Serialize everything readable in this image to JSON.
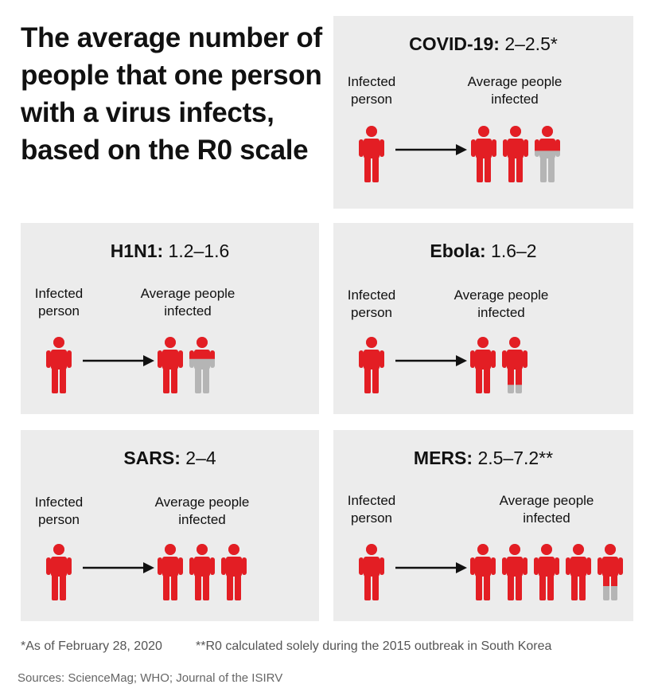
{
  "title": "The average number of people that one person with a virus infects, based on the R0 scale",
  "labels": {
    "infected_person": "Infected person",
    "average_infected": "Average people infected"
  },
  "colors": {
    "infected": "#e31e24",
    "partial": "#b5b5b5",
    "panel": "#ececec",
    "arrow": "#111111"
  },
  "panels": [
    {
      "id": "covid",
      "name": "COVID-19:",
      "range": "2–2.5*",
      "figures": [
        1,
        1,
        0.45
      ]
    },
    {
      "id": "h1n1",
      "name": "H1N1:",
      "range": "1.2–1.6",
      "figures": [
        1,
        0.4
      ]
    },
    {
      "id": "ebola",
      "name": "Ebola:",
      "range": "1.6–2",
      "figures": [
        1,
        0.85
      ]
    },
    {
      "id": "sars",
      "name": "SARS:",
      "range": "2–4",
      "figures": [
        1,
        1,
        1
      ]
    },
    {
      "id": "mers",
      "name": "MERS:",
      "range": "2.5–7.2**",
      "figures": [
        1,
        1,
        1,
        1,
        0.75
      ]
    }
  ],
  "footnotes": {
    "asof": "*As of February 28, 2020",
    "r0": "**R0 calculated solely during the 2015 outbreak in South Korea"
  },
  "sources": "Sources: ScienceMag; WHO; Journal of the ISIRV"
}
